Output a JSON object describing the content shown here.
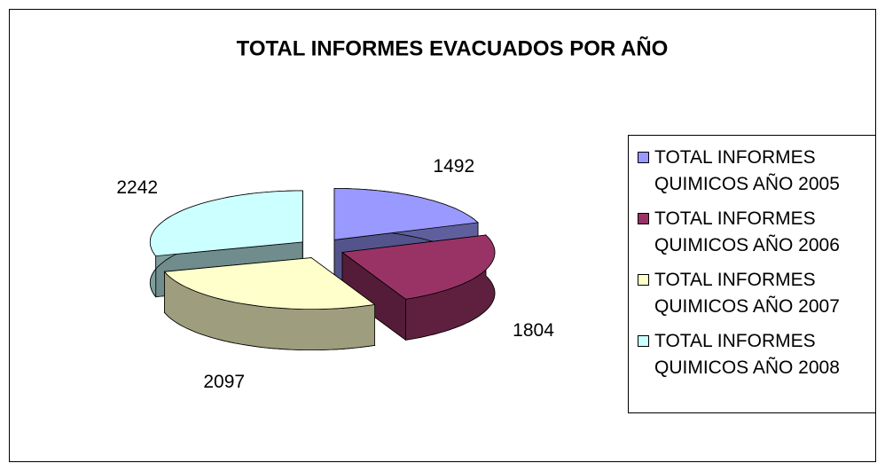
{
  "chart_data": {
    "type": "pie3d",
    "title": "TOTAL INFORMES EVACUADOS POR AÑO",
    "categories": [
      "TOTAL INFORMES QUIMICOS AÑO 2005",
      "TOTAL INFORMES QUIMICOS AÑO 2006",
      "TOTAL INFORMES QUIMICOS AÑO 2007",
      "TOTAL INFORMES QUIMICOS AÑO 2008"
    ],
    "values": [
      1492,
      1804,
      2097,
      2242
    ],
    "colors": [
      "#9999ff",
      "#993366",
      "#ffffcc",
      "#ccffff"
    ],
    "legend": "right"
  }
}
